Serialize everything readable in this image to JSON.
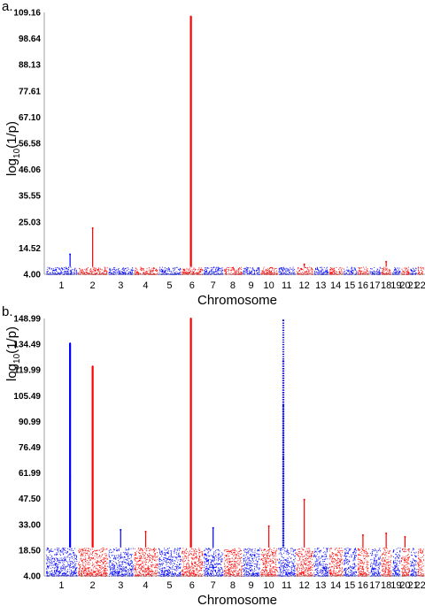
{
  "chart_data": [
    {
      "panel": "a.",
      "type": "scatter",
      "xlabel": "Chromosome",
      "ylabel_main": "log",
      "ylabel_sub": "10",
      "ylabel_tail": "(1/p)",
      "yticks": [
        "4.00",
        "14.52",
        "25.03",
        "35.55",
        "46.06",
        "56.58",
        "67.10",
        "77.61",
        "88.13",
        "98.64",
        "109.16"
      ],
      "ylim": [
        4.0,
        109.16
      ],
      "chromosomes": [
        "1",
        "2",
        "3",
        "4",
        "5",
        "6",
        "7",
        "8",
        "9",
        "10",
        "11",
        "12",
        "13",
        "14",
        "15",
        "16",
        "17",
        "18",
        "19",
        "20",
        "21",
        "22"
      ],
      "colors": [
        "#0000ff",
        "#ff0000"
      ],
      "peaks": [
        {
          "chromosome": "1",
          "value": 12
        },
        {
          "chromosome": "2",
          "value": 22.5
        },
        {
          "chromosome": "6",
          "value": 107.5
        },
        {
          "chromosome": "12",
          "value": 8
        },
        {
          "chromosome": "18",
          "value": 9
        }
      ],
      "baseline_max": 7
    },
    {
      "panel": "b.",
      "type": "scatter",
      "xlabel": "Chromosome",
      "ylabel_main": "log",
      "ylabel_sub": "10",
      "ylabel_tail": "(1/p)",
      "yticks": [
        "4.00",
        "18.50",
        "33.00",
        "47.50",
        "61.99",
        "76.49",
        "90.99",
        "105.49",
        "119.99",
        "134.49",
        "148.99"
      ],
      "ylim": [
        4.0,
        148.99
      ],
      "chromosomes": [
        "1",
        "2",
        "3",
        "4",
        "5",
        "6",
        "7",
        "8",
        "9",
        "10",
        "11",
        "12",
        "13",
        "14",
        "15",
        "16",
        "17",
        "18",
        "19",
        "20",
        "21",
        "22"
      ],
      "colors": [
        "#0000ff",
        "#ff0000"
      ],
      "peaks": [
        {
          "chromosome": "1",
          "value": 135
        },
        {
          "chromosome": "1",
          "value": 96
        },
        {
          "chromosome": "1",
          "value": 60
        },
        {
          "chromosome": "2",
          "value": 122
        },
        {
          "chromosome": "3",
          "value": 30
        },
        {
          "chromosome": "4",
          "value": 29
        },
        {
          "chromosome": "6",
          "value": 149
        },
        {
          "chromosome": "7",
          "value": 31
        },
        {
          "chromosome": "10",
          "value": 32
        },
        {
          "chromosome": "11",
          "value": 148
        },
        {
          "chromosome": "11",
          "value": 125
        },
        {
          "chromosome": "11",
          "value": 100
        },
        {
          "chromosome": "11",
          "value": 70
        },
        {
          "chromosome": "12",
          "value": 47
        },
        {
          "chromosome": "16",
          "value": 27
        },
        {
          "chromosome": "18",
          "value": 28
        },
        {
          "chromosome": "20",
          "value": 26
        }
      ],
      "baseline_max": 20
    }
  ]
}
